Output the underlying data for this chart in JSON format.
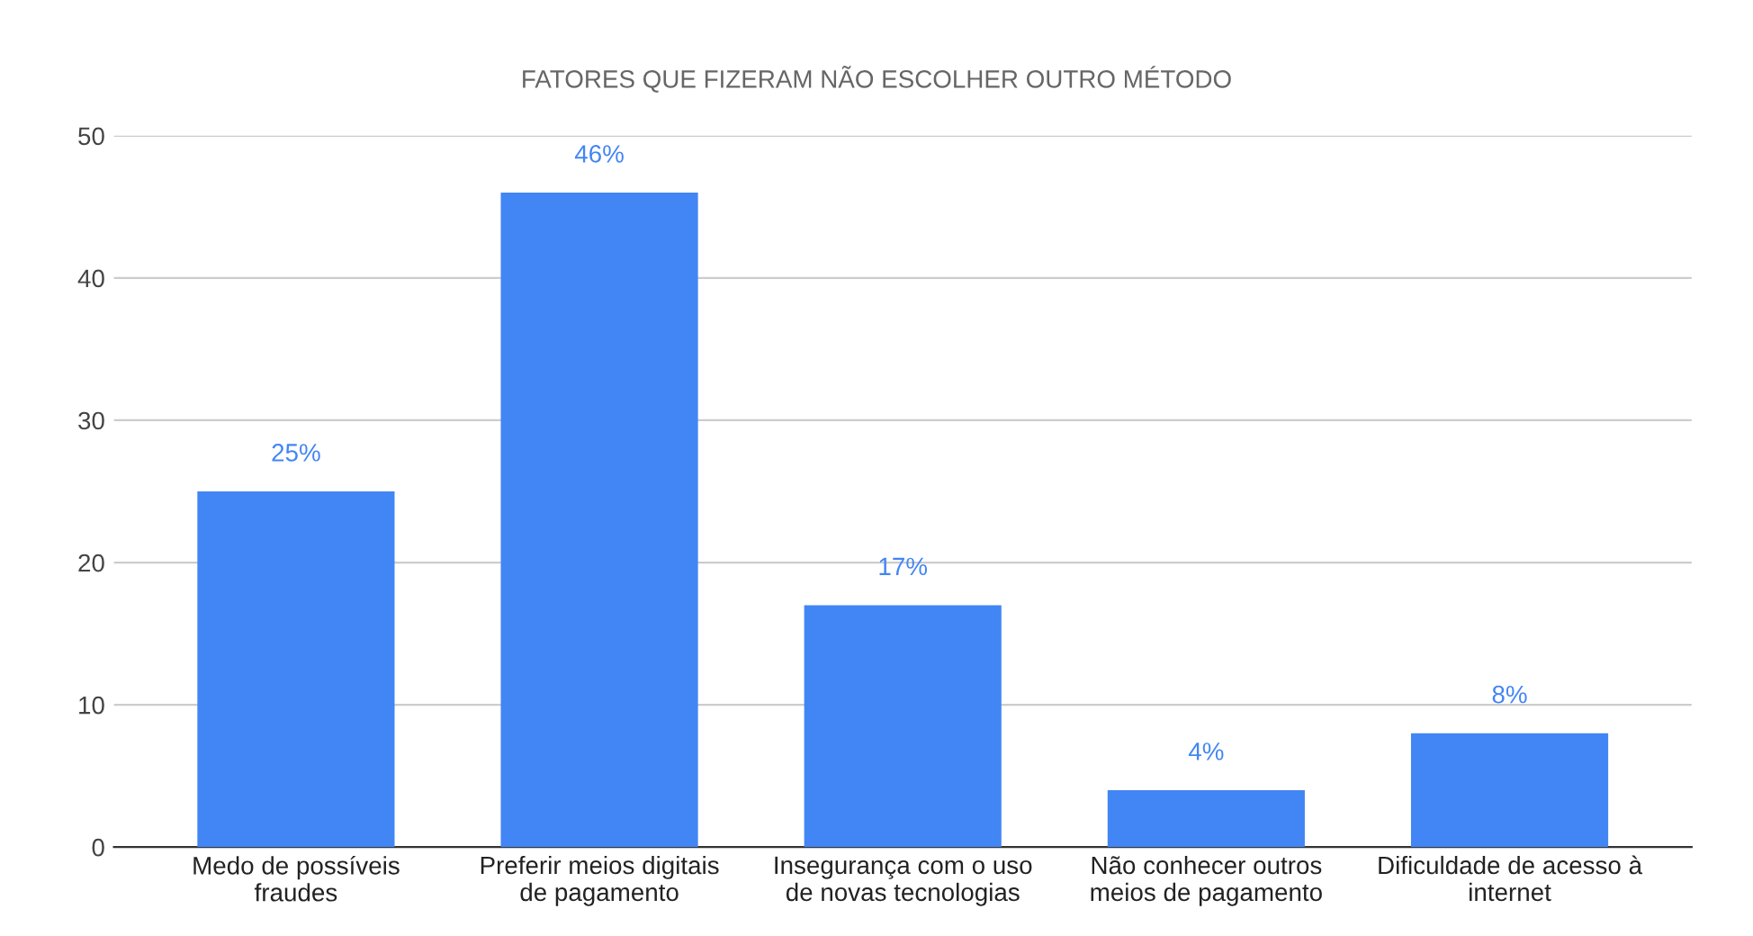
{
  "chart_data": {
    "type": "bar",
    "title": "FATORES QUE FIZERAM NÃO ESCOLHER OUTRO MÉTODO",
    "categories": [
      "Medo de possíveis fraudes",
      "Preferir meios digitais de pagamento",
      "Insegurança com o uso de novas tecnologias",
      "Não conhecer outros meios de pagamento",
      "Dificuldade de acesso à internet"
    ],
    "values": [
      25,
      46,
      17,
      4,
      8
    ],
    "value_labels": [
      "25%",
      "46%",
      "17%",
      "4%",
      "8%"
    ],
    "color": "#4285f4",
    "ylim": [
      0,
      50
    ],
    "yticks": [
      0,
      10,
      20,
      30,
      40,
      50
    ],
    "grid": "y",
    "legend": false
  }
}
